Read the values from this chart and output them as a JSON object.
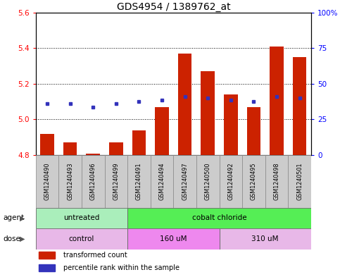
{
  "title": "GDS4954 / 1389762_at",
  "samples": [
    "GSM1240490",
    "GSM1240493",
    "GSM1240496",
    "GSM1240499",
    "GSM1240491",
    "GSM1240494",
    "GSM1240497",
    "GSM1240500",
    "GSM1240492",
    "GSM1240495",
    "GSM1240498",
    "GSM1240501"
  ],
  "red_values": [
    4.92,
    4.87,
    4.81,
    4.87,
    4.94,
    5.07,
    5.37,
    5.27,
    5.14,
    5.07,
    5.41,
    5.35
  ],
  "blue_values": [
    5.09,
    5.09,
    5.07,
    5.09,
    5.1,
    5.11,
    5.13,
    5.12,
    5.11,
    5.1,
    5.13,
    5.12
  ],
  "ylim_left": [
    4.8,
    5.6
  ],
  "ylim_right": [
    0,
    100
  ],
  "yticks_left": [
    4.8,
    5.0,
    5.2,
    5.4,
    5.6
  ],
  "yticks_right": [
    0,
    25,
    50,
    75,
    100
  ],
  "ytick_labels_right": [
    "0",
    "25",
    "50",
    "75",
    "100%"
  ],
  "bar_bottom": 4.8,
  "bar_color": "#cc2200",
  "blue_color": "#3333bb",
  "agent_groups": [
    {
      "label": "untreated",
      "start": 0,
      "end": 4,
      "color": "#aaeebb"
    },
    {
      "label": "cobalt chloride",
      "start": 4,
      "end": 12,
      "color": "#55ee55"
    }
  ],
  "dose_groups": [
    {
      "label": "control",
      "start": 0,
      "end": 4,
      "color": "#e8b8e8"
    },
    {
      "label": "160 uM",
      "start": 4,
      "end": 8,
      "color": "#ee88ee"
    },
    {
      "label": "310 uM",
      "start": 8,
      "end": 12,
      "color": "#e8b8e8"
    }
  ],
  "legend_red_label": "transformed count",
  "legend_blue_label": "percentile rank within the sample",
  "agent_label": "agent",
  "dose_label": "dose",
  "background_color": "#ffffff",
  "sample_box_color": "#cccccc",
  "title_fontsize": 10,
  "bar_width": 0.6
}
